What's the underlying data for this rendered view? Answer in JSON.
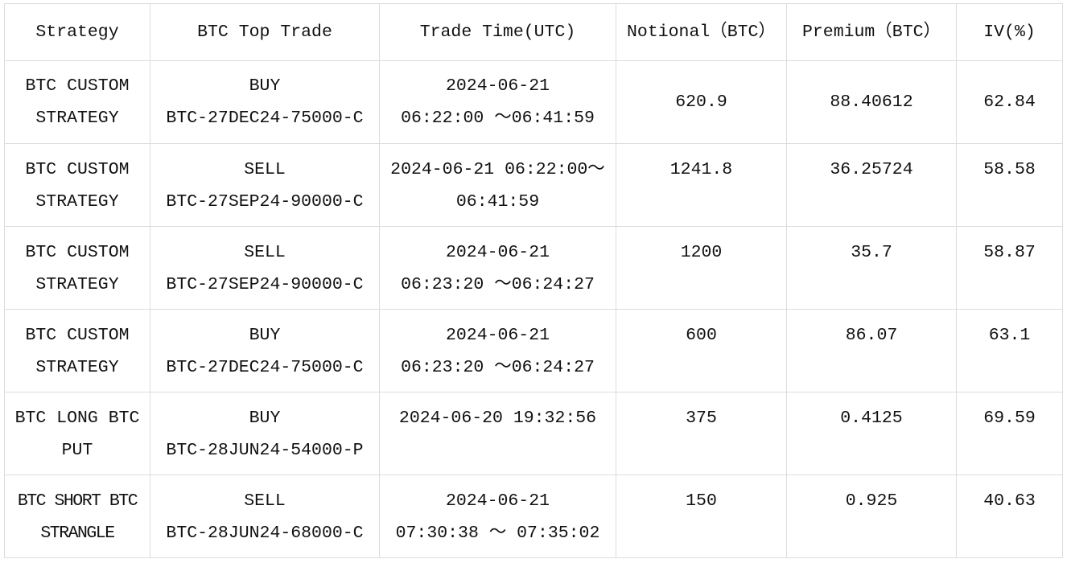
{
  "columns": [
    "Strategy",
    "BTC Top Trade",
    "Trade Time(UTC)",
    "Notional（BTC）",
    "Premium（BTC）",
    "IV(%)"
  ],
  "rows": [
    {
      "strategy": [
        "BTC CUSTOM",
        "STRATEGY"
      ],
      "trade": [
        "BUY",
        "BTC-27DEC24-75000-C"
      ],
      "time": [
        "2024-06-21",
        "06:22:00 ～06:41:59"
      ],
      "notional": "620.9",
      "premium": "88.40612",
      "iv": "62.84"
    },
    {
      "strategy": [
        "BTC CUSTOM",
        "STRATEGY"
      ],
      "trade": [
        "SELL",
        "BTC-27SEP24-90000-C"
      ],
      "time": [
        "2024-06-21 06:22:00～",
        "06:41:59"
      ],
      "notional": "1241.8",
      "premium": "36.25724",
      "iv": "58.58"
    },
    {
      "strategy": [
        "BTC CUSTOM",
        "STRATEGY"
      ],
      "trade": [
        "SELL",
        "BTC-27SEP24-90000-C"
      ],
      "time": [
        "2024-06-21",
        "06:23:20 ～06:24:27"
      ],
      "notional": "1200",
      "premium": "35.7",
      "iv": "58.87"
    },
    {
      "strategy": [
        "BTC CUSTOM",
        "STRATEGY"
      ],
      "trade": [
        "BUY",
        "BTC-27DEC24-75000-C"
      ],
      "time": [
        "2024-06-21",
        "06:23:20 ～06:24:27"
      ],
      "notional": "600",
      "premium": "86.07",
      "iv": "63.1"
    },
    {
      "strategy": [
        "BTC LONG BTC",
        "PUT"
      ],
      "trade": [
        "BUY",
        "BTC-28JUN24-54000-P"
      ],
      "time": [
        "2024-06-20 19:32:56",
        ""
      ],
      "notional": "375",
      "premium": "0.4125",
      "iv": "69.59"
    },
    {
      "strategy": [
        "BTC SHORT BTC",
        "STRANGLE"
      ],
      "trade": [
        "SELL",
        "BTC-28JUN24-68000-C"
      ],
      "time": [
        "2024-06-21",
        "07:30:38 ～ 07:35:02"
      ],
      "notional": "150",
      "premium": "0.925",
      "iv": "40.63"
    }
  ]
}
